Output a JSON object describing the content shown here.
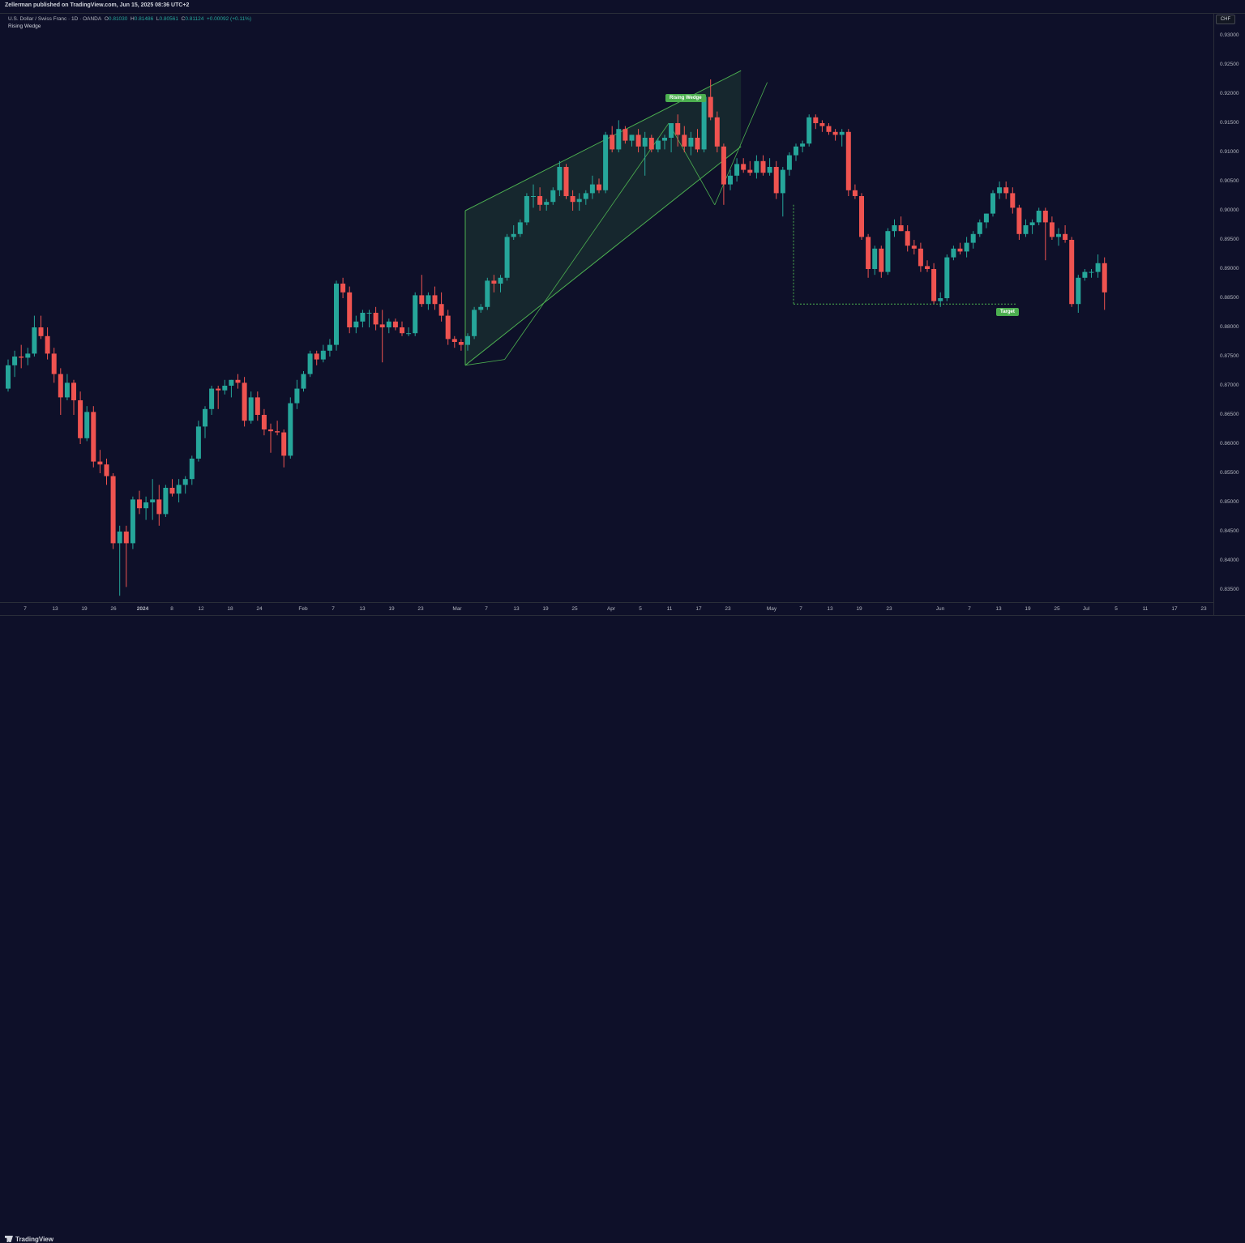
{
  "header": {
    "publisher_line": "Zellerman published on TradingView.com, Jun 15, 2025 08:36 UTC+2"
  },
  "legend": {
    "symbol": "U.S. Dollar / Swiss Franc · 1D · OANDA",
    "o_label": "O",
    "o_value": "0.81030",
    "h_label": "H",
    "h_value": "0.81486",
    "l_label": "L",
    "l_value": "0.80561",
    "c_label": "C",
    "c_value": "0.81124",
    "change": "+0.00092 (+0.11%)",
    "study": "Rising Wedge"
  },
  "currency": "CHF",
  "footer": {
    "brand": "TradingView",
    "brand_icon": "tradingview-logo-icon"
  },
  "colors": {
    "up": "#26a69a",
    "down": "#ef5350",
    "background": "#0e1029",
    "pattern": "#4caf50"
  },
  "chart_data": {
    "type": "candlestick",
    "title": "U.S. Dollar / Swiss Franc · 1D · OANDA",
    "ylim": [
      0.8325,
      0.9325
    ],
    "y_ticks": [
      "0.93000",
      "0.92500",
      "0.92000",
      "0.91500",
      "0.91000",
      "0.90500",
      "0.90000",
      "0.89500",
      "0.89000",
      "0.88500",
      "0.88000",
      "0.87500",
      "0.87000",
      "0.86500",
      "0.86000",
      "0.85500",
      "0.85000",
      "0.84500",
      "0.84000",
      "0.83500"
    ],
    "x_ticks": [
      "7",
      "13",
      "19",
      "26",
      "2024",
      "8",
      "12",
      "18",
      "24",
      "Feb",
      "7",
      "13",
      "19",
      "23",
      "Mar",
      "7",
      "13",
      "19",
      "25",
      "Apr",
      "5",
      "11",
      "17",
      "23",
      "May",
      "7",
      "13",
      "19",
      "23",
      "Jun",
      "7",
      "13",
      "19",
      "25",
      "Jul",
      "5",
      "11",
      "17",
      "23"
    ],
    "candles_ohlc": [
      [
        0.8695,
        0.8745,
        0.869,
        0.8735
      ],
      [
        0.8735,
        0.876,
        0.8715,
        0.875
      ],
      [
        0.875,
        0.877,
        0.873,
        0.8748
      ],
      [
        0.8748,
        0.8765,
        0.8735,
        0.8755
      ],
      [
        0.8755,
        0.882,
        0.875,
        0.88
      ],
      [
        0.88,
        0.882,
        0.878,
        0.8785
      ],
      [
        0.8785,
        0.88,
        0.8745,
        0.8755
      ],
      [
        0.8755,
        0.8765,
        0.8705,
        0.872
      ],
      [
        0.872,
        0.873,
        0.865,
        0.868
      ],
      [
        0.868,
        0.872,
        0.8675,
        0.8705
      ],
      [
        0.8705,
        0.871,
        0.865,
        0.8675
      ],
      [
        0.8675,
        0.869,
        0.86,
        0.861
      ],
      [
        0.861,
        0.8665,
        0.8605,
        0.8655
      ],
      [
        0.8655,
        0.8665,
        0.856,
        0.857
      ],
      [
        0.857,
        0.859,
        0.855,
        0.8565
      ],
      [
        0.8565,
        0.8575,
        0.853,
        0.8545
      ],
      [
        0.8545,
        0.855,
        0.842,
        0.843
      ],
      [
        0.843,
        0.846,
        0.834,
        0.845
      ],
      [
        0.845,
        0.846,
        0.8355,
        0.843
      ],
      [
        0.843,
        0.851,
        0.842,
        0.8505
      ],
      [
        0.8505,
        0.852,
        0.848,
        0.849
      ],
      [
        0.849,
        0.851,
        0.847,
        0.85
      ],
      [
        0.85,
        0.854,
        0.847,
        0.8505
      ],
      [
        0.8505,
        0.853,
        0.846,
        0.848
      ],
      [
        0.848,
        0.853,
        0.8475,
        0.8525
      ],
      [
        0.8525,
        0.854,
        0.851,
        0.8515
      ],
      [
        0.8515,
        0.854,
        0.85,
        0.853
      ],
      [
        0.853,
        0.8545,
        0.8515,
        0.854
      ],
      [
        0.854,
        0.858,
        0.853,
        0.8575
      ],
      [
        0.8575,
        0.864,
        0.857,
        0.863
      ],
      [
        0.863,
        0.8665,
        0.861,
        0.866
      ],
      [
        0.866,
        0.87,
        0.865,
        0.8695
      ],
      [
        0.8695,
        0.87,
        0.866,
        0.8692
      ],
      [
        0.8692,
        0.871,
        0.8685,
        0.87
      ],
      [
        0.87,
        0.871,
        0.868,
        0.871
      ],
      [
        0.871,
        0.872,
        0.8695,
        0.8705
      ],
      [
        0.8705,
        0.8715,
        0.863,
        0.864
      ],
      [
        0.864,
        0.869,
        0.8635,
        0.868
      ],
      [
        0.868,
        0.869,
        0.864,
        0.865
      ],
      [
        0.865,
        0.866,
        0.8615,
        0.8625
      ],
      [
        0.8625,
        0.8635,
        0.8585,
        0.8622
      ],
      [
        0.8622,
        0.864,
        0.8615,
        0.862
      ],
      [
        0.862,
        0.8625,
        0.856,
        0.858
      ],
      [
        0.858,
        0.868,
        0.8575,
        0.867
      ],
      [
        0.867,
        0.871,
        0.866,
        0.8695
      ],
      [
        0.8695,
        0.8725,
        0.869,
        0.872
      ],
      [
        0.872,
        0.876,
        0.8715,
        0.8755
      ],
      [
        0.8755,
        0.876,
        0.8735,
        0.8745
      ],
      [
        0.8745,
        0.877,
        0.874,
        0.876
      ],
      [
        0.876,
        0.878,
        0.875,
        0.877
      ],
      [
        0.877,
        0.888,
        0.876,
        0.8875
      ],
      [
        0.8875,
        0.8885,
        0.885,
        0.886
      ],
      [
        0.886,
        0.887,
        0.879,
        0.88
      ],
      [
        0.88,
        0.882,
        0.879,
        0.881
      ],
      [
        0.881,
        0.883,
        0.88,
        0.8825
      ],
      [
        0.8825,
        0.883,
        0.88,
        0.8825
      ],
      [
        0.8825,
        0.8835,
        0.8795,
        0.8805
      ],
      [
        0.8805,
        0.883,
        0.874,
        0.88
      ],
      [
        0.88,
        0.8815,
        0.879,
        0.881
      ],
      [
        0.881,
        0.8815,
        0.8795,
        0.88
      ],
      [
        0.88,
        0.881,
        0.8785,
        0.879
      ],
      [
        0.879,
        0.88,
        0.8785,
        0.879
      ],
      [
        0.879,
        0.886,
        0.8785,
        0.8855
      ],
      [
        0.8855,
        0.889,
        0.8835,
        0.884
      ],
      [
        0.884,
        0.886,
        0.883,
        0.8855
      ],
      [
        0.8855,
        0.887,
        0.883,
        0.884
      ],
      [
        0.884,
        0.886,
        0.881,
        0.882
      ],
      [
        0.882,
        0.883,
        0.877,
        0.878
      ],
      [
        0.878,
        0.8785,
        0.8765,
        0.8775
      ],
      [
        0.8775,
        0.878,
        0.876,
        0.877
      ],
      [
        0.877,
        0.879,
        0.876,
        0.8785
      ],
      [
        0.8785,
        0.8835,
        0.878,
        0.883
      ],
      [
        0.883,
        0.884,
        0.8825,
        0.8835
      ],
      [
        0.8835,
        0.8885,
        0.883,
        0.888
      ],
      [
        0.888,
        0.889,
        0.886,
        0.8875
      ],
      [
        0.8875,
        0.889,
        0.886,
        0.8885
      ],
      [
        0.8885,
        0.896,
        0.888,
        0.8955
      ],
      [
        0.8955,
        0.8975,
        0.895,
        0.896
      ],
      [
        0.896,
        0.8985,
        0.8955,
        0.898
      ],
      [
        0.898,
        0.903,
        0.8975,
        0.9025
      ],
      [
        0.9025,
        0.9045,
        0.9005,
        0.9025
      ],
      [
        0.9025,
        0.904,
        0.9,
        0.901
      ],
      [
        0.901,
        0.902,
        0.9,
        0.9015
      ],
      [
        0.9015,
        0.904,
        0.901,
        0.9035
      ],
      [
        0.9035,
        0.9085,
        0.9025,
        0.9075
      ],
      [
        0.9075,
        0.908,
        0.902,
        0.9025
      ],
      [
        0.9025,
        0.9035,
        0.9,
        0.9015
      ],
      [
        0.9015,
        0.903,
        0.9,
        0.902
      ],
      [
        0.902,
        0.9035,
        0.901,
        0.903
      ],
      [
        0.903,
        0.906,
        0.902,
        0.9045
      ],
      [
        0.9045,
        0.9055,
        0.903,
        0.9035
      ],
      [
        0.9035,
        0.9135,
        0.903,
        0.913
      ],
      [
        0.913,
        0.9145,
        0.91,
        0.9105
      ],
      [
        0.9105,
        0.9155,
        0.91,
        0.914
      ],
      [
        0.914,
        0.9145,
        0.9115,
        0.912
      ],
      [
        0.912,
        0.913,
        0.911,
        0.913
      ],
      [
        0.913,
        0.914,
        0.91,
        0.911
      ],
      [
        0.911,
        0.9135,
        0.906,
        0.9125
      ],
      [
        0.9125,
        0.913,
        0.91,
        0.9105
      ],
      [
        0.9105,
        0.9125,
        0.91,
        0.912
      ],
      [
        0.912,
        0.913,
        0.9105,
        0.9125
      ],
      [
        0.9125,
        0.915,
        0.91,
        0.915
      ],
      [
        0.915,
        0.9165,
        0.911,
        0.913
      ],
      [
        0.913,
        0.9145,
        0.91,
        0.911
      ],
      [
        0.911,
        0.9135,
        0.9095,
        0.9125
      ],
      [
        0.9125,
        0.914,
        0.91,
        0.9105
      ],
      [
        0.9105,
        0.92,
        0.91,
        0.9195
      ],
      [
        0.9195,
        0.9225,
        0.9155,
        0.916
      ],
      [
        0.916,
        0.917,
        0.91,
        0.911
      ],
      [
        0.911,
        0.9115,
        0.901,
        0.9045
      ],
      [
        0.9045,
        0.907,
        0.9035,
        0.906
      ],
      [
        0.906,
        0.909,
        0.905,
        0.908
      ],
      [
        0.908,
        0.909,
        0.9065,
        0.907
      ],
      [
        0.907,
        0.9085,
        0.906,
        0.9065
      ],
      [
        0.9065,
        0.9095,
        0.9055,
        0.9085
      ],
      [
        0.9085,
        0.9095,
        0.906,
        0.9065
      ],
      [
        0.9065,
        0.909,
        0.906,
        0.9075
      ],
      [
        0.9075,
        0.9085,
        0.902,
        0.903
      ],
      [
        0.903,
        0.9075,
        0.899,
        0.907
      ],
      [
        0.907,
        0.91,
        0.906,
        0.9095
      ],
      [
        0.9095,
        0.9115,
        0.9085,
        0.911
      ],
      [
        0.911,
        0.912,
        0.91,
        0.9115
      ],
      [
        0.9115,
        0.9165,
        0.911,
        0.916
      ],
      [
        0.916,
        0.9165,
        0.914,
        0.915
      ],
      [
        0.915,
        0.9155,
        0.9135,
        0.9145
      ],
      [
        0.9145,
        0.915,
        0.913,
        0.9135
      ],
      [
        0.9135,
        0.914,
        0.912,
        0.913
      ],
      [
        0.913,
        0.914,
        0.911,
        0.9135
      ],
      [
        0.9135,
        0.914,
        0.9025,
        0.9035
      ],
      [
        0.9035,
        0.9045,
        0.902,
        0.9025
      ],
      [
        0.9025,
        0.903,
        0.895,
        0.8955
      ],
      [
        0.8955,
        0.896,
        0.8885,
        0.89
      ],
      [
        0.89,
        0.894,
        0.889,
        0.8935
      ],
      [
        0.8935,
        0.894,
        0.8885,
        0.8895
      ],
      [
        0.8895,
        0.897,
        0.889,
        0.8965
      ],
      [
        0.8965,
        0.8985,
        0.8955,
        0.8975
      ],
      [
        0.8975,
        0.899,
        0.8965,
        0.8965
      ],
      [
        0.8965,
        0.8975,
        0.893,
        0.894
      ],
      [
        0.894,
        0.895,
        0.8925,
        0.8935
      ],
      [
        0.8935,
        0.8945,
        0.8895,
        0.8905
      ],
      [
        0.8905,
        0.8915,
        0.8895,
        0.89
      ],
      [
        0.89,
        0.891,
        0.884,
        0.8845
      ],
      [
        0.8845,
        0.886,
        0.8835,
        0.885
      ],
      [
        0.885,
        0.8925,
        0.8845,
        0.892
      ],
      [
        0.892,
        0.894,
        0.8915,
        0.8935
      ],
      [
        0.8935,
        0.8945,
        0.8925,
        0.893
      ],
      [
        0.893,
        0.8955,
        0.892,
        0.8945
      ],
      [
        0.8945,
        0.8965,
        0.8935,
        0.896
      ],
      [
        0.896,
        0.8985,
        0.8955,
        0.898
      ],
      [
        0.898,
        0.8995,
        0.897,
        0.8995
      ],
      [
        0.8995,
        0.9035,
        0.899,
        0.903
      ],
      [
        0.903,
        0.905,
        0.902,
        0.904
      ],
      [
        0.904,
        0.905,
        0.902,
        0.903
      ],
      [
        0.903,
        0.904,
        0.8995,
        0.9005
      ],
      [
        0.9005,
        0.901,
        0.895,
        0.896
      ],
      [
        0.896,
        0.8985,
        0.8955,
        0.8975
      ],
      [
        0.8975,
        0.8985,
        0.896,
        0.898
      ],
      [
        0.898,
        0.9005,
        0.8975,
        0.9
      ],
      [
        0.9,
        0.9005,
        0.8915,
        0.898
      ],
      [
        0.898,
        0.899,
        0.895,
        0.8955
      ],
      [
        0.8955,
        0.897,
        0.894,
        0.896
      ],
      [
        0.896,
        0.8975,
        0.8945,
        0.895
      ],
      [
        0.895,
        0.8955,
        0.8835,
        0.884
      ],
      [
        0.884,
        0.889,
        0.8825,
        0.8885
      ],
      [
        0.8885,
        0.89,
        0.888,
        0.8895
      ],
      [
        0.8895,
        0.89,
        0.8885,
        0.8895
      ],
      [
        0.8895,
        0.8925,
        0.8885,
        0.891
      ],
      [
        0.891,
        0.892,
        0.883,
        0.886
      ]
    ],
    "annotations": {
      "pattern_label": "Rising Wedge",
      "target_label": "Target",
      "wedge_upper": [
        [
          0.9,
          70
        ],
        [
          0.924,
          112
        ]
      ],
      "wedge_lower": [
        [
          0.8735,
          70
        ],
        [
          0.911,
          112
        ]
      ],
      "target_level": 0.884
    }
  }
}
